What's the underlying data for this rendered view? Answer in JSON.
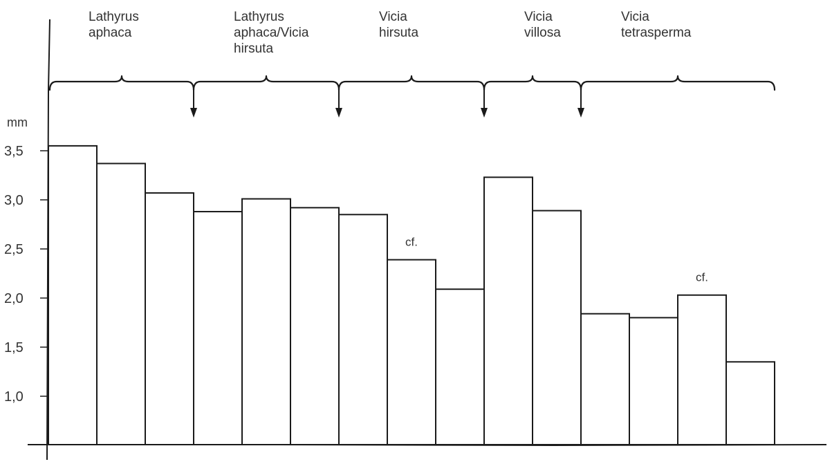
{
  "chart_data": {
    "type": "bar",
    "title": "",
    "xlabel": "",
    "ylabel": "mm",
    "ylim": [
      0.7,
      3.6
    ],
    "yticks": [
      {
        "value": 1.0,
        "label": "1,0"
      },
      {
        "value": 1.5,
        "label": "1,5"
      },
      {
        "value": 2.0,
        "label": "2,0"
      },
      {
        "value": 2.5,
        "label": "2,5"
      },
      {
        "value": 3.0,
        "label": "3,0"
      },
      {
        "value": 3.5,
        "label": "3,5"
      }
    ],
    "values": [
      3.55,
      3.37,
      3.07,
      2.88,
      3.01,
      2.92,
      2.85,
      2.39,
      2.09,
      3.23,
      2.89,
      1.84,
      1.8,
      2.03,
      1.35
    ],
    "grid": false,
    "groups": [
      {
        "label_lines": [
          "Lathyrus",
          "aphaca"
        ],
        "start_bar": 0,
        "end_bar": 2
      },
      {
        "label_lines": [
          "Lathyrus",
          "aphaca/Vicia",
          "hirsuta"
        ],
        "start_bar": 3,
        "end_bar": 5
      },
      {
        "label_lines": [
          "Vicia",
          "hirsuta"
        ],
        "start_bar": 6,
        "end_bar": 8
      },
      {
        "label_lines": [
          "Vicia",
          "villosa"
        ],
        "start_bar": 9,
        "end_bar": 10
      },
      {
        "label_lines": [
          "Vicia",
          "tetrasperma"
        ],
        "start_bar": 11,
        "end_bar": 14
      }
    ],
    "group_boundary_arrows": [
      3,
      6,
      9,
      11
    ],
    "annotations": [
      {
        "text": "cf.",
        "bar": 7
      },
      {
        "text": "cf.",
        "bar": 13
      }
    ]
  }
}
